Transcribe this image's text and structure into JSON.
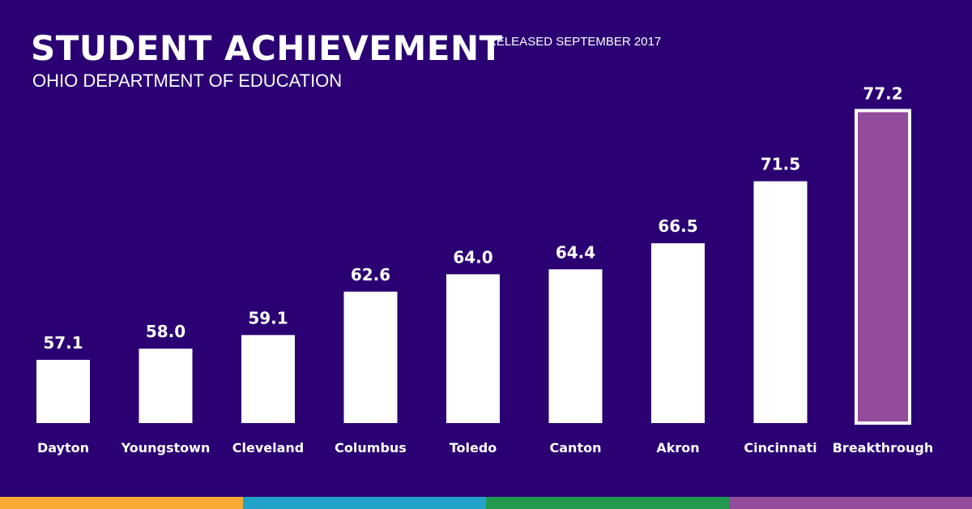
{
  "header": {
    "title": "STUDENT ACHIEVEMENT",
    "subtitle": "OHIO DEPARTMENT OF EDUCATION",
    "release": "RELEASED SEPTEMBER 2017"
  },
  "colors": {
    "background": "#2a0073",
    "bar": "#ffffff",
    "highlight_fill": "#934b9b",
    "highlight_stroke": "#ffffff",
    "label": "#ffffff",
    "footer_stripes": [
      "#f6a933",
      "#22a1c9",
      "#239a4f",
      "#934b9b"
    ]
  },
  "chart_data": {
    "type": "bar",
    "title": "STUDENT ACHIEVEMENT",
    "xlabel": "",
    "ylabel": "",
    "categories": [
      "Dayton",
      "Youngstown",
      "Cleveland",
      "Columbus",
      "Toledo",
      "Canton",
      "Akron",
      "Cincinnati",
      "Breakthrough"
    ],
    "values": [
      57.1,
      58.0,
      59.1,
      62.6,
      64.0,
      64.4,
      66.5,
      71.5,
      77.2
    ],
    "value_labels": [
      "57.1",
      "58.0",
      "59.1",
      "62.6",
      "64.0",
      "64.4",
      "66.5",
      "71.5",
      "77.2"
    ],
    "highlight_category": "Breakthrough",
    "grid": false,
    "legend": "none"
  }
}
